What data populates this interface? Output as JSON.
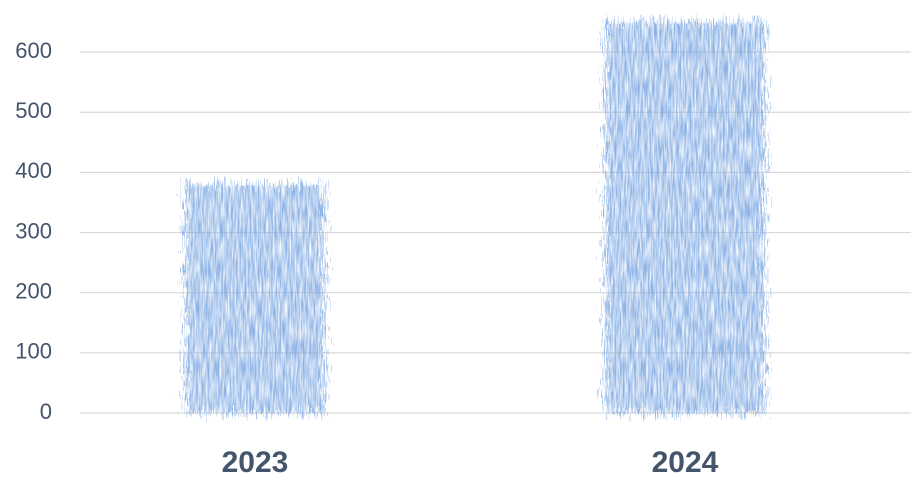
{
  "chart_data": {
    "type": "bar",
    "categories": [
      "2023",
      "2024"
    ],
    "values": [
      380,
      650
    ],
    "color": "#7ea9e3",
    "ylim": [
      0,
      680
    ],
    "yticks": [
      0,
      100,
      200,
      300,
      400,
      500,
      600
    ],
    "grid": true
  }
}
